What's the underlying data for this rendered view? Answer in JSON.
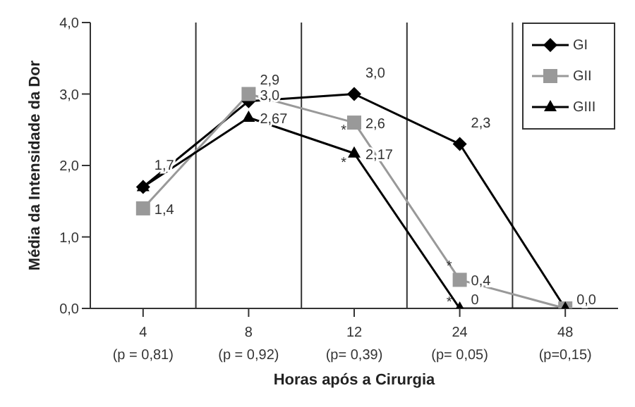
{
  "chart_data": {
    "type": "line",
    "xlabel": "Horas após a Cirurgia",
    "ylabel": "Média da Intensidade da Dor",
    "categories": [
      "4\n(p = 0,81)",
      "8\n(p = 0,92)",
      "12\n(p= 0,39)",
      "24\n(p= 0,05)",
      "48\n(p=0,15)"
    ],
    "series": [
      {
        "name": "GI",
        "color": "#000000",
        "marker": "diamond",
        "values": [
          1.7,
          2.9,
          3.0,
          2.3,
          0.0
        ],
        "value_labels": [
          "1,7",
          "2,9",
          "3,0",
          "2,3",
          null
        ]
      },
      {
        "name": "GII",
        "color": "#999999",
        "marker": "square",
        "values": [
          1.4,
          3.0,
          2.6,
          0.4,
          0.0
        ],
        "value_labels": [
          "1,4",
          "3,0",
          "2,6",
          "0,4",
          "0,0"
        ]
      },
      {
        "name": "GIII",
        "color": "#000000",
        "marker": "triangle",
        "values": [
          1.7,
          2.67,
          2.17,
          0.0,
          0.0
        ],
        "value_labels": [
          null,
          "2,67",
          "2,17",
          "0",
          null
        ]
      }
    ],
    "ylim": [
      0,
      4
    ],
    "yticks": [
      {
        "value": 0,
        "label": "0,0"
      },
      {
        "value": 1,
        "label": "1,0"
      },
      {
        "value": 2,
        "label": "2,0"
      },
      {
        "value": 3,
        "label": "3,0"
      },
      {
        "value": 4,
        "label": "4,0"
      }
    ],
    "grid": "x",
    "legend": "top right",
    "line_style": "solid",
    "annotations": [
      {
        "text": "*",
        "x": "12\n(p= 0,39)",
        "y": 2.5
      },
      {
        "text": "*",
        "x": "12\n(p= 0,39)",
        "y": 2.05
      },
      {
        "text": "*",
        "x": "24\n(p= 0,05)",
        "y": 0.6
      },
      {
        "text": "*",
        "x": "24\n(p= 0,05)",
        "y": 0.1
      }
    ]
  }
}
